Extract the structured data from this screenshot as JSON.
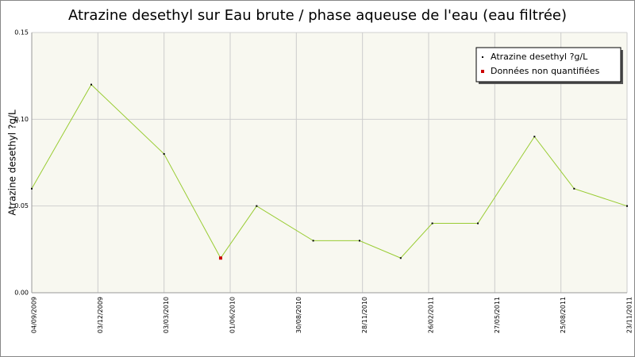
{
  "chart_data": {
    "type": "line",
    "title": "Atrazine desethyl sur Eau brute / phase aqueuse de l'eau (eau filtrée)",
    "y_label": "Atrazine desethyl ?g/L",
    "x": [
      "2009-09-04",
      "2009-11-24",
      "2010-03-03",
      "2010-05-19",
      "2010-07-07",
      "2010-09-22",
      "2010-11-24",
      "2011-01-19",
      "2011-03-03",
      "2011-05-04",
      "2011-07-20",
      "2011-09-12",
      "2011-11-23"
    ],
    "series": [
      {
        "name": "Atrazine desethyl ?g/L",
        "color": "#99cc33",
        "marker_color": "#000000",
        "values": [
          0.06,
          0.12,
          0.08,
          0.02,
          0.05,
          0.03,
          0.03,
          0.02,
          0.04,
          0.04,
          0.09,
          0.06,
          0.05
        ]
      },
      {
        "name": "Données non quantifiées",
        "color": "#cc0000",
        "values": [
          null,
          null,
          null,
          0.02,
          null,
          null,
          null,
          null,
          null,
          null,
          null,
          null,
          null
        ]
      }
    ],
    "xlim": [
      "2009-09-04",
      "2011-11-23"
    ],
    "xticks": [
      {
        "value": "2009-09-04",
        "label": "04/09/2009"
      },
      {
        "value": "2009-12-03",
        "label": "03/12/2009"
      },
      {
        "value": "2010-03-03",
        "label": "03/03/2010"
      },
      {
        "value": "2010-06-01",
        "label": "01/06/2010"
      },
      {
        "value": "2010-08-30",
        "label": "30/08/2010"
      },
      {
        "value": "2010-11-28",
        "label": "28/11/2010"
      },
      {
        "value": "2011-02-26",
        "label": "26/02/2011"
      },
      {
        "value": "2011-05-27",
        "label": "27/05/2011"
      },
      {
        "value": "2011-08-25",
        "label": "25/08/2011"
      },
      {
        "value": "2011-11-23",
        "label": "23/11/2011"
      }
    ],
    "ylim": [
      0,
      0.15
    ],
    "yticks": [
      {
        "value": 0,
        "label": "0.00"
      },
      {
        "value": 0.05,
        "label": "0.05"
      },
      {
        "value": 0.1,
        "label": "0.10"
      },
      {
        "value": 0.15,
        "label": "0.15"
      }
    ],
    "grid": true,
    "legend": "top-right"
  }
}
